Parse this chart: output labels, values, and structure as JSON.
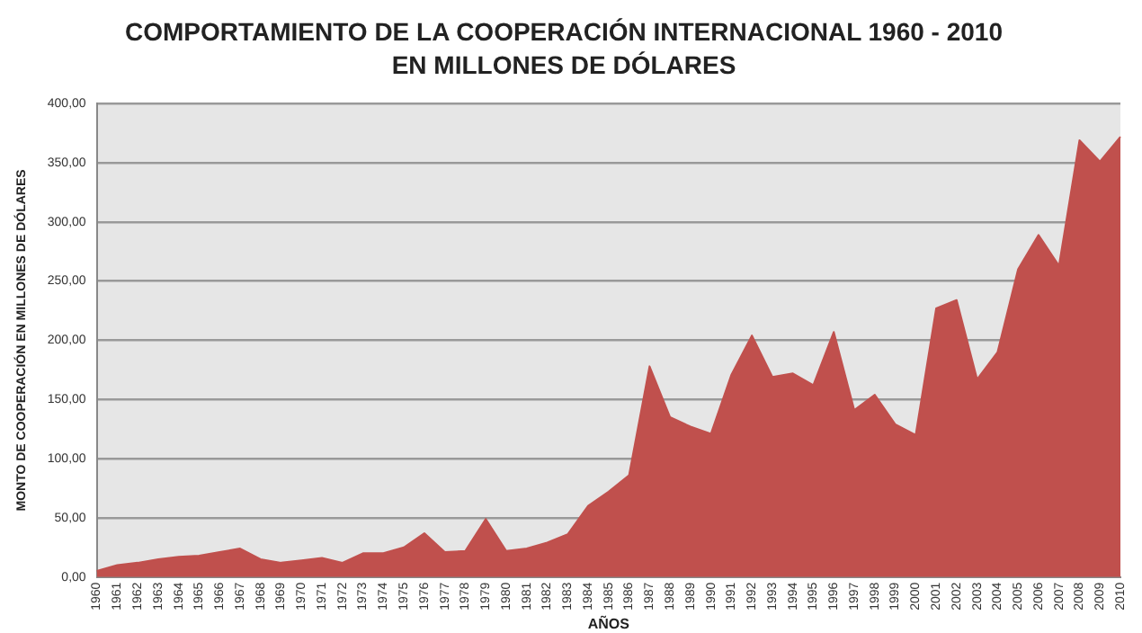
{
  "chart_data": {
    "type": "area",
    "title": "COMPORTAMIENTO DE LA COOPERACIÓN INTERNACIONAL 1960 - 2010",
    "subtitle": "EN MILLONES DE DÓLARES",
    "xlabel": "AÑOS",
    "ylabel": "MONTO DE COOPERACIÓN EN MILLONES DE DÓLARES",
    "categories": [
      "1960",
      "1961",
      "1962",
      "1963",
      "1964",
      "1965",
      "1966",
      "1967",
      "1968",
      "1969",
      "1970",
      "1971",
      "1972",
      "1973",
      "1974",
      "1975",
      "1976",
      "1977",
      "1978",
      "1979",
      "1980",
      "1981",
      "1982",
      "1983",
      "1984",
      "1985",
      "1986",
      "1987",
      "1988",
      "1989",
      "1990",
      "1991",
      "1992",
      "1993",
      "1994",
      "1995",
      "1996",
      "1997",
      "1998",
      "1999",
      "2000",
      "2001",
      "2002",
      "2003",
      "2004",
      "2005",
      "2006",
      "2007",
      "2008",
      "2009",
      "2010"
    ],
    "series": [
      {
        "color": "#c0504d",
        "values": [
          5,
          10,
          12,
          15,
          17,
          18,
          21,
          24,
          15,
          12,
          14,
          16,
          12,
          20,
          20,
          25,
          37,
          21,
          22,
          49,
          22,
          24,
          29,
          36,
          60,
          72,
          86,
          178,
          135,
          127,
          121,
          171,
          204,
          169,
          172,
          162,
          207,
          141,
          154,
          129,
          120,
          227,
          234,
          167,
          190,
          260,
          289,
          263,
          369,
          351,
          372
        ]
      }
    ],
    "ylim": [
      0,
      400
    ],
    "yticks": [
      {
        "value": 0,
        "label": "0,00"
      },
      {
        "value": 50,
        "label": "50,00"
      },
      {
        "value": 100,
        "label": "100,00"
      },
      {
        "value": 150,
        "label": "150,00"
      },
      {
        "value": 200,
        "label": "200,00"
      },
      {
        "value": 250,
        "label": "250,00"
      },
      {
        "value": 300,
        "label": "300,00"
      },
      {
        "value": 350,
        "label": "350,00"
      },
      {
        "value": 400,
        "label": "400,00"
      }
    ],
    "grid": "y",
    "legend": false
  }
}
